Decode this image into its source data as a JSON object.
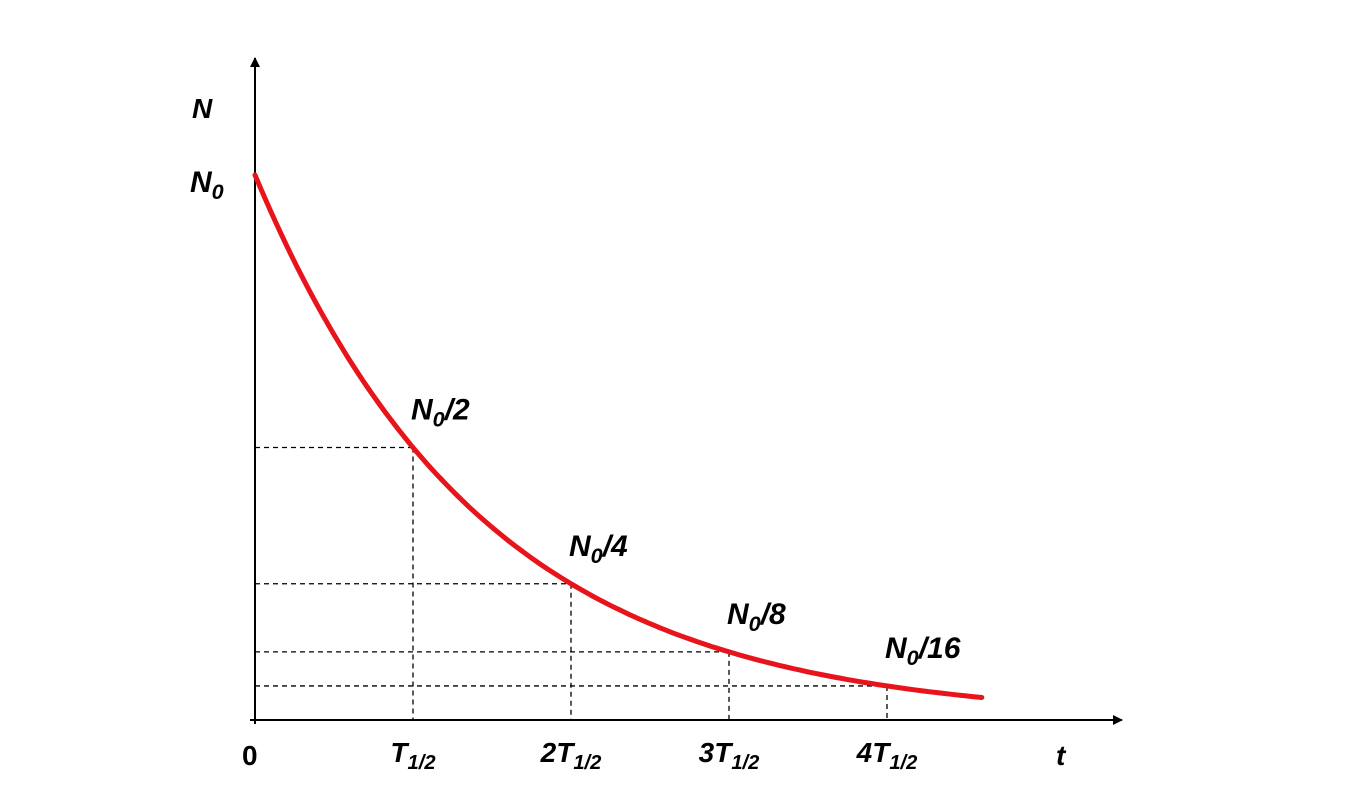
{
  "chart_data": {
    "type": "line",
    "title": "",
    "xlabel": "t",
    "ylabel": "N",
    "origin_label": "0",
    "y0_label": {
      "base": "N",
      "sub": "0",
      "tail": ""
    },
    "x": [
      0,
      0.5,
      1,
      1.5,
      2,
      2.5,
      3,
      3.5,
      4,
      4.6
    ],
    "series": [
      {
        "color": "#e8141b",
        "values": [
          1,
          0.7071,
          0.5,
          0.3536,
          0.25,
          0.1768,
          0.125,
          0.0884,
          0.0625,
          0.0412
        ]
      }
    ],
    "xlim": [
      0,
      5.3
    ],
    "ylim": [
      0,
      1.2
    ],
    "grid": false,
    "x_ticks": [
      {
        "value": 1,
        "pre": "",
        "base": "T",
        "sub": "1/2"
      },
      {
        "value": 2,
        "pre": "2",
        "base": "T",
        "sub": "1/2"
      },
      {
        "value": 3,
        "pre": "3",
        "base": "T",
        "sub": "1/2"
      },
      {
        "value": 4,
        "pre": "4",
        "base": "T",
        "sub": "1/2"
      }
    ],
    "annotations": [
      {
        "x": 1,
        "y": 0.5,
        "base": "N",
        "sub": "0",
        "tail": "/2"
      },
      {
        "x": 2,
        "y": 0.25,
        "base": "N",
        "sub": "0",
        "tail": "/4"
      },
      {
        "x": 3,
        "y": 0.125,
        "base": "N",
        "sub": "0",
        "tail": "/8"
      },
      {
        "x": 4,
        "y": 0.0625,
        "base": "N",
        "sub": "0",
        "tail": "/16"
      }
    ],
    "guides": "dashed"
  }
}
